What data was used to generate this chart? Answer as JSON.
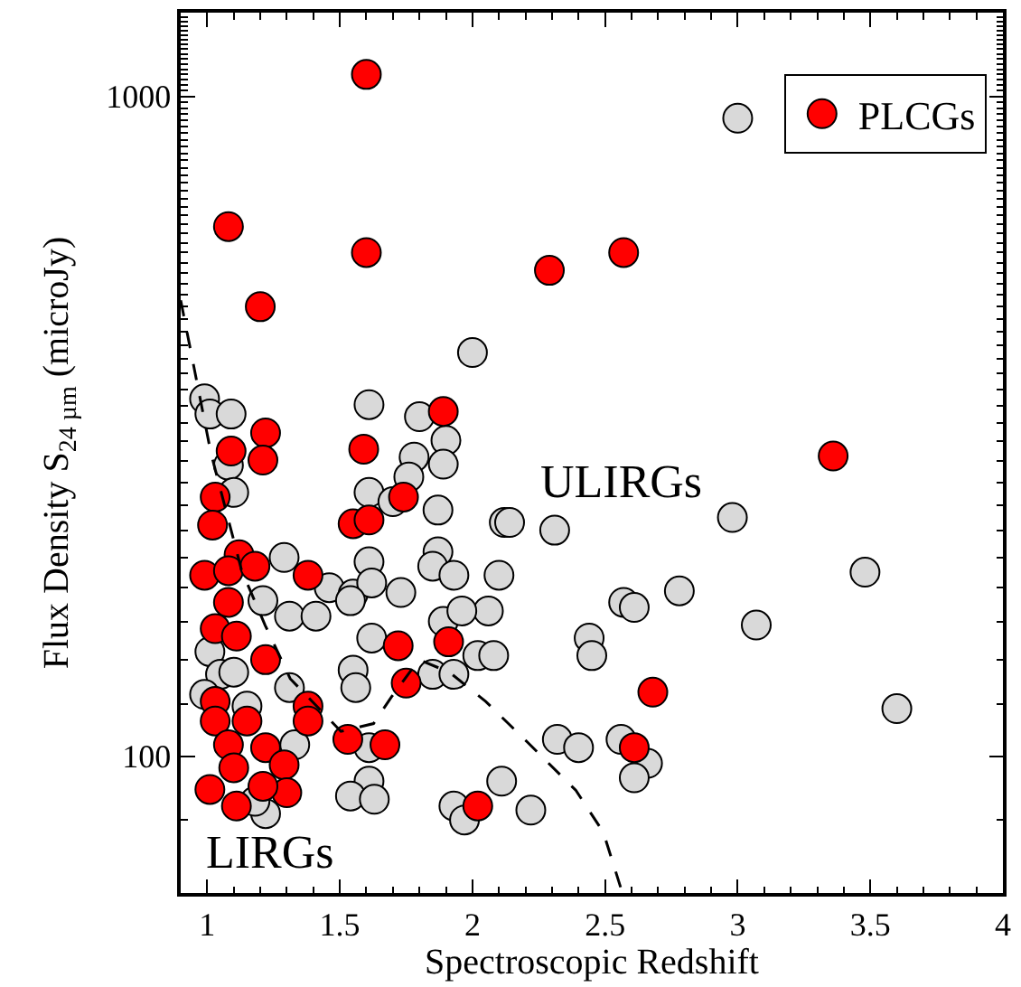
{
  "chart_data": {
    "type": "scatter",
    "xlabel": "Spectroscopic Redshift",
    "ylabel": "Flux Density S$_{24 µm}$ (microJy)",
    "xlim": [
      0.9,
      4.0
    ],
    "xticks": [
      1,
      1.5,
      2,
      2.5,
      3,
      3.5,
      4
    ],
    "ylim": [
      62,
      1340
    ],
    "yticks": [
      100,
      1000
    ],
    "log": true,
    "legend": "top right",
    "marker": "circle",
    "annotations": [
      "ULIRGs",
      "LIRGs"
    ],
    "series": [
      {
        "color": "#d9d9d9",
        "x": [
          3.0,
          2.0,
          1.61,
          0.99,
          1.01,
          1.09,
          1.8,
          1.9,
          1.78,
          1.89,
          1.76,
          1.61,
          1.7,
          1.87,
          2.12,
          1.87,
          1.85,
          1.93,
          1.61,
          1.29,
          1.46,
          1.55,
          1.62,
          1.73,
          1.21,
          2.1,
          1.08,
          1.1,
          2.14,
          2.31,
          2.98,
          3.48,
          2.78,
          2.57,
          2.61,
          2.06,
          3.07,
          2.44,
          2.45,
          2.02,
          2.08,
          3.6,
          2.32,
          2.4,
          2.56,
          2.66,
          2.61,
          2.11,
          2.22,
          1.31,
          1.41,
          1.54,
          1.62,
          1.55,
          1.56,
          1.85,
          1.93,
          1.89,
          1.96,
          1.31,
          1.61,
          1.61,
          1.54,
          1.63,
          1.93,
          1.97,
          1.22,
          1.01,
          1.05,
          0.99,
          1.15,
          1.1,
          1.33,
          1.18
        ],
        "values": [
          927,
          409,
          341,
          348,
          330,
          330,
          327,
          301,
          284,
          277,
          265,
          251,
          243,
          236,
          226,
          204,
          194,
          188,
          197,
          200,
          180,
          176,
          183,
          177,
          172,
          188,
          276,
          251,
          226,
          220,
          230,
          190,
          178,
          171,
          168,
          166,
          158,
          151,
          142,
          142,
          142,
          118,
          106,
          103,
          106,
          97.5,
          92.7,
          91.6,
          82.8,
          163,
          163,
          172,
          151,
          135,
          127,
          133,
          133,
          160,
          166,
          127,
          103,
          91.6,
          87,
          86,
          84,
          80,
          81.8,
          144,
          133,
          124,
          119,
          134,
          104,
          85.4
        ]
      },
      {
        "name": "PLCGs",
        "color": "#ff0000",
        "x": [
          1.6,
          1.08,
          1.6,
          2.29,
          2.57,
          1.2,
          3.36,
          1.89,
          1.22,
          1.09,
          1.21,
          1.59,
          1.03,
          1.74,
          1.55,
          1.61,
          1.02,
          1.12,
          1.38,
          0.99,
          1.08,
          1.18,
          1.08,
          1.03,
          1.11,
          1.22,
          1.72,
          1.91,
          1.75,
          1.03,
          1.03,
          1.15,
          1.38,
          1.38,
          1.08,
          1.22,
          1.53,
          1.67,
          1.1,
          1.29,
          1.3,
          1.21,
          1.01,
          1.11,
          2.02,
          2.68,
          2.61
        ],
        "values": [
          1080,
          635,
          580,
          545,
          580,
          480,
          285,
          333,
          309,
          290,
          281,
          292,
          247,
          247,
          225,
          228,
          224,
          202,
          188,
          188,
          191,
          194,
          171,
          156,
          152,
          140,
          147,
          149,
          129,
          121,
          113,
          113,
          119,
          113,
          104,
          103,
          106,
          104,
          96,
          97,
          88,
          90,
          89,
          84,
          84,
          125,
          103
        ]
      },
      {
        "type": "line",
        "color": "#000000",
        "line_style": "dashed",
        "marker": "none",
        "x": [
          0.9,
          1.014,
          1.13,
          1.218,
          1.313,
          1.504,
          1.627,
          1.695,
          1.798,
          1.913,
          2.05,
          2.207,
          2.39,
          2.493,
          2.561
        ],
        "values": [
          491,
          288,
          191,
          158,
          131,
          109,
          112,
          123,
          140,
          134,
          121,
          105,
          88.7,
          76.7,
          62.8
        ]
      }
    ]
  }
}
